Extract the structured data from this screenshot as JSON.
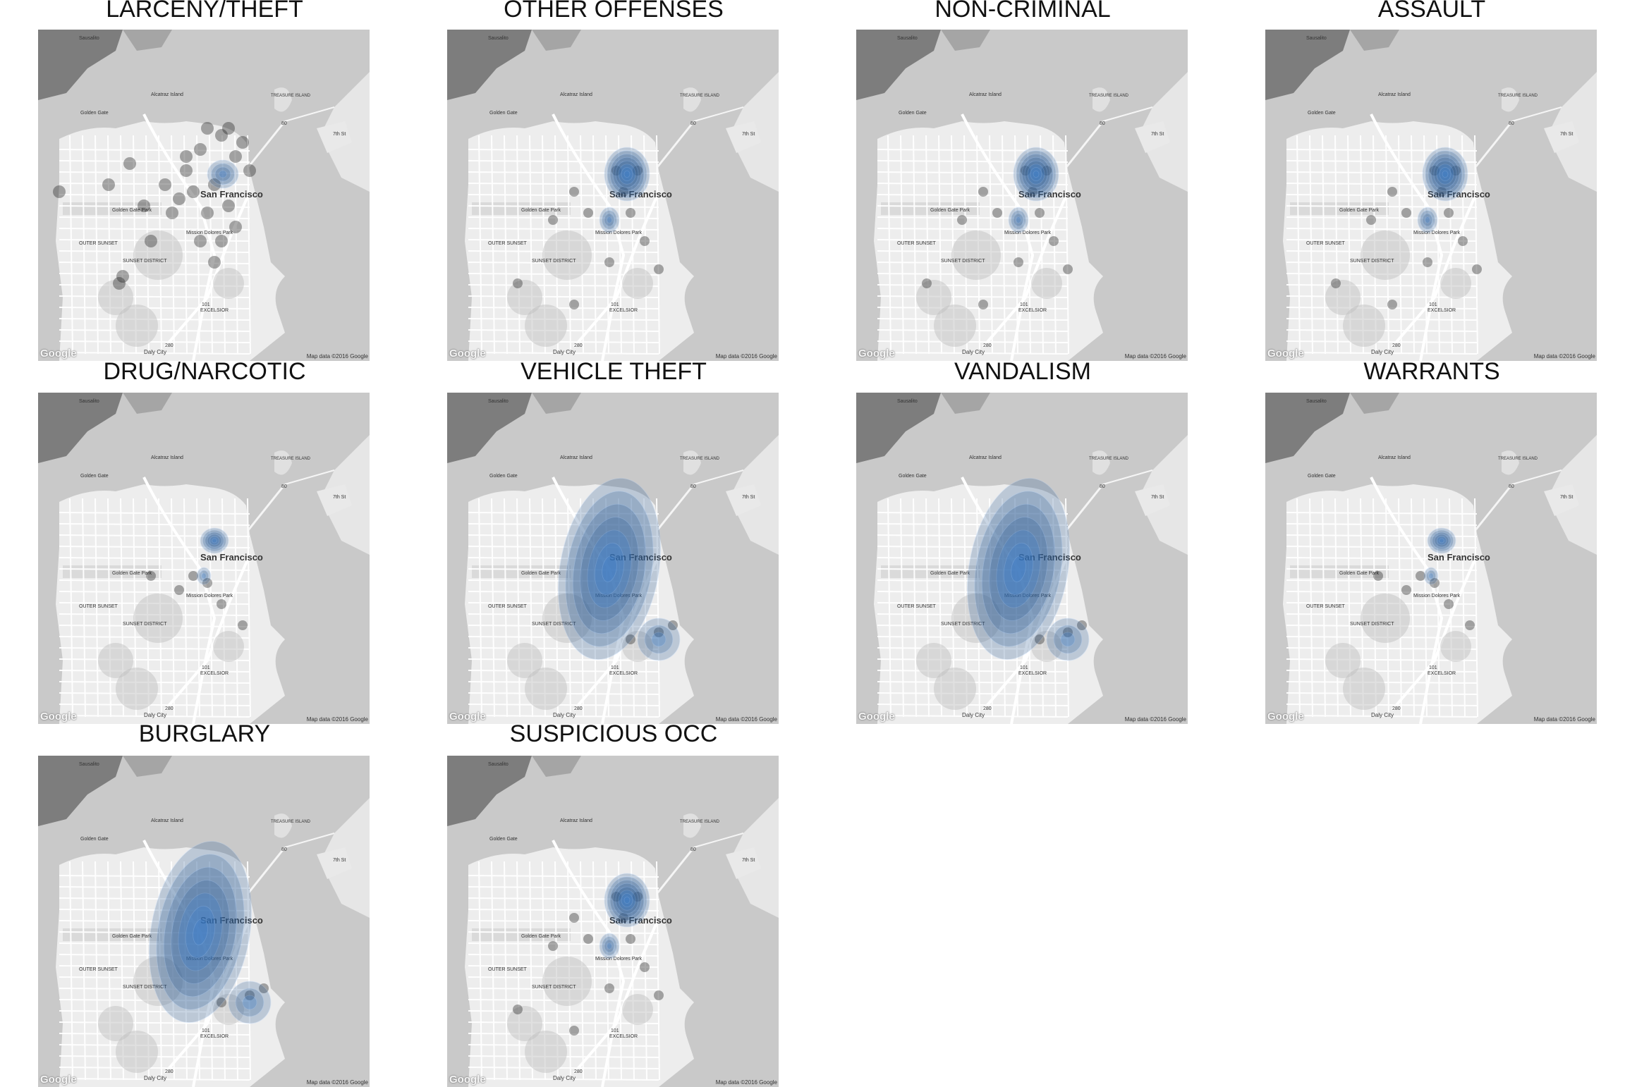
{
  "map_attribution": {
    "logo": "Google",
    "credit": "Map data ©2016 Google"
  },
  "place_labels": {
    "sausalito": "Sausalito",
    "alcatraz": "Alcatraz Island",
    "treasure": "TREASURE ISLAND",
    "golden_gate": "Golden Gate",
    "sf": "San Francisco",
    "ggpark": "Golden Gate Park",
    "outer_sunset": "OUTER SUNSET",
    "sunset": "SUNSET DISTRICT",
    "mission": "Mission Dolores Park",
    "excelsior": "EXCELSIOR",
    "daly": "Daly City",
    "hwy101": "101",
    "hwy280": "280",
    "hwy80": "80",
    "st7": "7th St"
  },
  "panels": [
    {
      "title": "LARCENY/THEFT",
      "style": "dots"
    },
    {
      "title": "OTHER OFFENSES",
      "style": "hotspot"
    },
    {
      "title": "NON-CRIMINAL",
      "style": "hotspot"
    },
    {
      "title": "ASSAULT",
      "style": "hotspot"
    },
    {
      "title": "DRUG/NARCOTIC",
      "style": "small"
    },
    {
      "title": "VEHICLE THEFT",
      "style": "spread"
    },
    {
      "title": "VANDALISM",
      "style": "spread"
    },
    {
      "title": "WARRANTS",
      "style": "small"
    },
    {
      "title": "BURGLARY",
      "style": "spread"
    },
    {
      "title": "SUSPICIOUS OCC",
      "style": "hotspot"
    }
  ]
}
